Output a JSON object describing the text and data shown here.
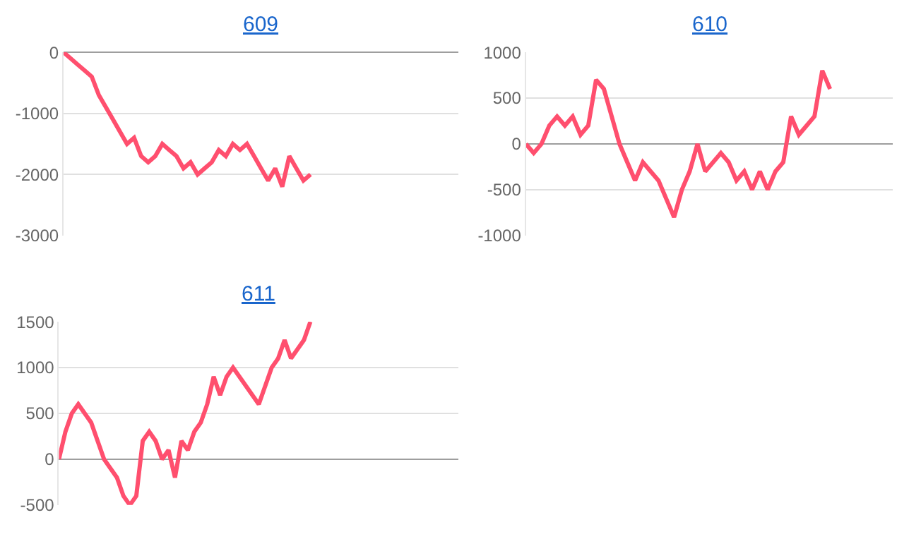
{
  "chart_data": [
    {
      "type": "line",
      "title": "609",
      "categories": [
        null,
        null,
        null,
        null,
        null,
        null,
        null,
        null,
        null,
        null,
        null,
        null,
        null,
        null,
        null,
        null,
        null,
        null,
        null,
        null,
        null,
        null,
        null,
        null,
        null,
        null,
        null,
        null,
        null,
        null,
        null,
        null,
        null,
        null,
        null,
        null,
        null,
        null,
        null,
        null,
        null,
        null,
        null,
        null,
        null,
        null,
        null,
        null,
        null,
        null,
        null,
        null,
        null,
        null,
        null,
        null,
        null
      ],
      "series": [
        {
          "color": "#ff4f6e",
          "values": [
            0,
            -100,
            -200,
            -300,
            -400,
            -700,
            -900,
            -1100,
            -1300,
            -1500,
            -1400,
            -1700,
            -1800,
            -1700,
            -1500,
            -1600,
            -1700,
            -1900,
            -1800,
            -2000,
            -1900,
            -1800,
            -1600,
            -1700,
            -1500,
            -1600,
            -1500,
            -1700,
            -1900,
            -2100,
            -1900,
            -2200,
            -1700,
            -1900,
            -2100,
            -2000,
            null,
            null,
            null,
            null,
            null,
            null,
            null,
            null,
            null,
            null,
            null,
            null,
            null,
            null,
            null,
            null,
            null,
            null,
            null,
            null,
            null
          ]
        }
      ],
      "ylim": [
        -3000,
        0
      ],
      "yticks": [
        -3000,
        -2000,
        -1000,
        0
      ],
      "grid": "y",
      "tick_labels": "y",
      "marker": "none",
      "line_style": "solid"
    },
    {
      "type": "line",
      "title": "610",
      "categories": [
        null,
        null,
        null,
        null,
        null,
        null,
        null,
        null,
        null,
        null,
        null,
        null,
        null,
        null,
        null,
        null,
        null,
        null,
        null,
        null,
        null,
        null,
        null,
        null,
        null,
        null,
        null,
        null,
        null,
        null,
        null,
        null,
        null,
        null,
        null,
        null,
        null,
        null,
        null,
        null,
        null,
        null,
        null,
        null,
        null,
        null,
        null,
        null
      ],
      "series": [
        {
          "color": "#ff4f6e",
          "values": [
            0,
            -100,
            0,
            200,
            300,
            200,
            300,
            100,
            200,
            700,
            600,
            300,
            0,
            -200,
            -400,
            -200,
            -300,
            -400,
            -600,
            -800,
            -500,
            -300,
            0,
            -300,
            -200,
            -100,
            -200,
            -400,
            -300,
            -500,
            -300,
            -500,
            -300,
            -200,
            300,
            100,
            200,
            300,
            800,
            600,
            null,
            null,
            null,
            null,
            null,
            null,
            null,
            null
          ]
        }
      ],
      "ylim": [
        -1000,
        1000
      ],
      "yticks": [
        -1000,
        -500,
        0,
        500,
        1000
      ],
      "grid": "y",
      "tick_labels": "y",
      "marker": "none",
      "line_style": "solid"
    },
    {
      "type": "line",
      "title": "611",
      "categories": [
        null,
        null,
        null,
        null,
        null,
        null,
        null,
        null,
        null,
        null,
        null,
        null,
        null,
        null,
        null,
        null,
        null,
        null,
        null,
        null,
        null,
        null,
        null,
        null,
        null,
        null,
        null,
        null,
        null,
        null,
        null,
        null,
        null,
        null,
        null,
        null,
        null,
        null,
        null,
        null,
        null,
        null,
        null,
        null,
        null,
        null,
        null,
        null,
        null,
        null,
        null,
        null,
        null,
        null,
        null,
        null,
        null,
        null,
        null,
        null,
        null,
        null,
        null
      ],
      "series": [
        {
          "color": "#ff4f6e",
          "values": [
            0,
            300,
            500,
            600,
            500,
            400,
            200,
            0,
            -100,
            -200,
            -400,
            -500,
            -400,
            200,
            300,
            200,
            0,
            100,
            -200,
            200,
            100,
            300,
            400,
            600,
            900,
            700,
            900,
            1000,
            900,
            800,
            700,
            600,
            800,
            1000,
            1100,
            1300,
            1100,
            1200,
            1300,
            1500,
            null,
            null,
            null,
            null,
            null,
            null,
            null,
            null,
            null,
            null,
            null,
            null,
            null,
            null,
            null,
            null,
            null,
            null,
            null,
            null,
            null,
            null,
            null
          ]
        }
      ],
      "ylim": [
        -500,
        1500
      ],
      "yticks": [
        -500,
        0,
        500,
        1000,
        1500
      ],
      "grid": "y",
      "tick_labels": "y",
      "marker": "none",
      "line_style": "solid"
    }
  ]
}
